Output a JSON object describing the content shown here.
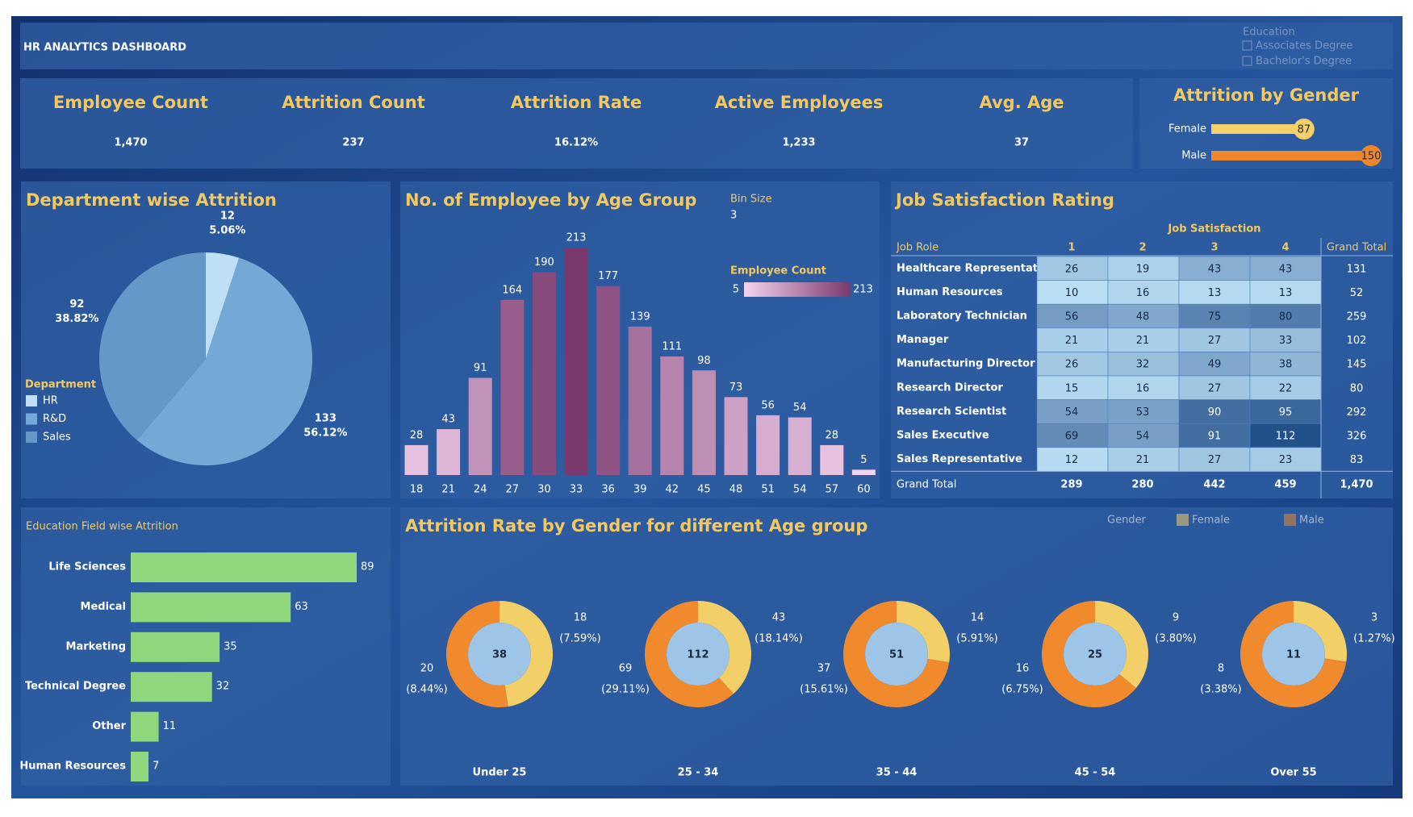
{
  "header": {
    "title": "HR ANALYTICS DASHBOARD",
    "filter": {
      "title": "Education",
      "items": [
        "Associates Degree",
        "Bachelor's Degree"
      ]
    }
  },
  "kpis": [
    {
      "label": "Employee Count",
      "value": "1,470"
    },
    {
      "label": "Attrition Count",
      "value": 237
    },
    {
      "label": "Attrition Rate",
      "value": "16.12%"
    },
    {
      "label": "Active Employees",
      "value": "1,233"
    },
    {
      "label": "Avg. Age",
      "value": 37
    }
  ],
  "chart_data": [
    {
      "type": "hbar-dot",
      "title": "Attrition by Gender",
      "categories": [
        "Female",
        "Male"
      ],
      "values": [
        87,
        150
      ],
      "colors": [
        "#f4cf6a",
        "#f0862a"
      ]
    },
    {
      "type": "pie",
      "title": "Department wise Attrition",
      "legend_title": "Department",
      "categories": [
        "HR",
        "R&D",
        "Sales"
      ],
      "values": [
        12,
        133,
        92
      ],
      "percent_labels": [
        "5.06%",
        "56.12%",
        "38.82%"
      ],
      "colors": [
        "#bfe0f4",
        "#75a9d5",
        "#6597c7"
      ]
    },
    {
      "type": "bar",
      "title": "No. of Employee by Age Group",
      "bin_size_title": "Bin Size",
      "bin_size": 3,
      "categories": [
        18,
        21,
        24,
        27,
        30,
        33,
        36,
        39,
        42,
        45,
        48,
        51,
        54,
        57,
        60
      ],
      "values": [
        28,
        43,
        91,
        164,
        190,
        213,
        177,
        139,
        111,
        98,
        73,
        56,
        54,
        28,
        5
      ],
      "color_scale": {
        "title": "Employee Count",
        "min": 5,
        "max": 213,
        "colors": [
          "#f4d3ee",
          "#7a3a6e"
        ]
      }
    },
    {
      "type": "hbar",
      "title": "Education Field wise Attrition",
      "categories": [
        "Life Sciences",
        "Medical",
        "Marketing",
        "Technical Degree",
        "Other",
        "Human Resources"
      ],
      "values": [
        89,
        63,
        35,
        32,
        11,
        7
      ],
      "color": "#8fd67c"
    },
    {
      "type": "donut",
      "title": "Attrition Rate by Gender for different Age group",
      "legend_title": "Gender",
      "categories": [
        "Under 25",
        "25 - 34",
        "35 - 44",
        "45 - 54",
        "Over 55"
      ],
      "totals": [
        38,
        112,
        51,
        25,
        11
      ],
      "series": [
        {
          "name": "Female",
          "color": "#f3cf68",
          "values": [
            18,
            43,
            14,
            9,
            3
          ],
          "percent_labels": [
            "(7.59%)",
            "(18.14%)",
            "(5.91%)",
            "(3.80%)",
            "(1.27%)"
          ]
        },
        {
          "name": "Male",
          "color": "#f08a2c",
          "values": [
            20,
            69,
            37,
            16,
            8
          ],
          "percent_labels": [
            "(8.44%)",
            "(29.11%)",
            "(15.61%)",
            "(6.75%)",
            "(3.38%)"
          ]
        }
      ]
    }
  ],
  "table": {
    "title": "Job Satisfaction Rating",
    "group_header": "Job Satisfaction",
    "columns": [
      "Job Role",
      "1",
      "2",
      "3",
      "4",
      "Grand Total"
    ],
    "rows": [
      [
        "Healthcare Representative",
        26,
        19,
        43,
        43,
        131
      ],
      [
        "Human Resources",
        10,
        16,
        13,
        13,
        52
      ],
      [
        "Laboratory Technician",
        56,
        48,
        75,
        80,
        259
      ],
      [
        "Manager",
        21,
        21,
        27,
        33,
        102
      ],
      [
        "Manufacturing Director",
        26,
        32,
        49,
        38,
        145
      ],
      [
        "Research Director",
        15,
        16,
        27,
        22,
        80
      ],
      [
        "Research Scientist",
        54,
        53,
        90,
        95,
        292
      ],
      [
        "Sales Executive",
        69,
        54,
        91,
        112,
        326
      ],
      [
        "Sales Representative",
        12,
        21,
        27,
        23,
        83
      ]
    ],
    "total_row": [
      "Grand Total",
      289,
      280,
      442,
      459,
      "1,470"
    ]
  }
}
